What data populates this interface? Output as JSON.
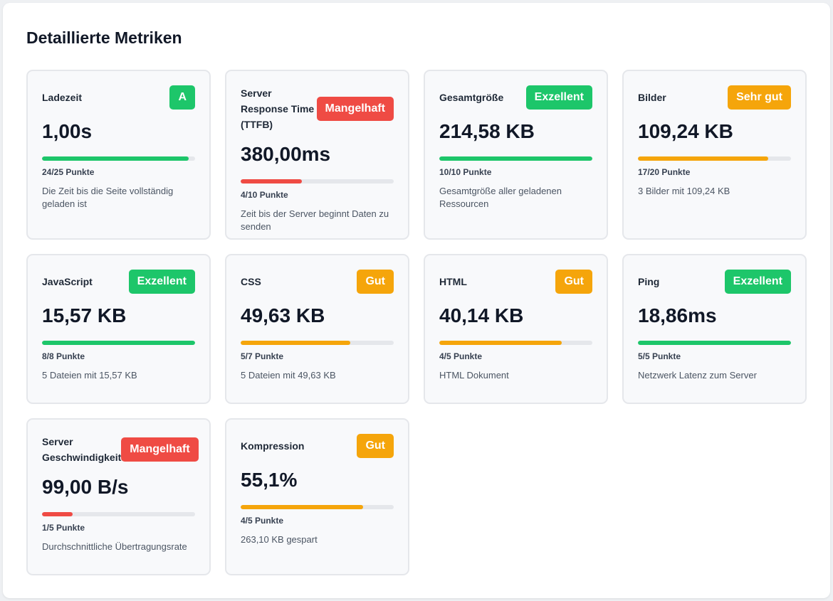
{
  "section": {
    "title": "Detaillierte Metriken"
  },
  "colors": {
    "green": "#1dc66a",
    "red": "#ef4b44",
    "orange": "#f5a50b",
    "track": "#e5e7eb"
  },
  "metrics": [
    {
      "title": "Ladezeit",
      "badge": "A",
      "status": "green",
      "value": "1,00s",
      "progress": 0.96,
      "points": "24/25 Punkte",
      "description": "Die Zeit bis die Seite vollständig geladen ist"
    },
    {
      "title": "Server Response Time (TTFB)",
      "badge": "Mangelhaft",
      "status": "red",
      "value": "380,00ms",
      "progress": 0.4,
      "points": "4/10 Punkte",
      "description": "Zeit bis der Server beginnt Daten zu senden"
    },
    {
      "title": "Gesamtgröße",
      "badge": "Exzellent",
      "status": "green",
      "value": "214,58 KB",
      "progress": 1.0,
      "points": "10/10 Punkte",
      "description": "Gesamtgröße aller geladenen Ressourcen"
    },
    {
      "title": "Bilder",
      "badge": "Sehr gut",
      "status": "orange",
      "value": "109,24 KB",
      "progress": 0.85,
      "points": "17/20 Punkte",
      "description": "3 Bilder mit 109,24 KB"
    },
    {
      "title": "JavaScript",
      "badge": "Exzellent",
      "status": "green",
      "value": "15,57 KB",
      "progress": 1.0,
      "points": "8/8 Punkte",
      "description": "5 Dateien mit 15,57 KB"
    },
    {
      "title": "CSS",
      "badge": "Gut",
      "status": "orange",
      "value": "49,63 KB",
      "progress": 0.714,
      "points": "5/7 Punkte",
      "description": "5 Dateien mit 49,63 KB"
    },
    {
      "title": "HTML",
      "badge": "Gut",
      "status": "orange",
      "value": "40,14 KB",
      "progress": 0.8,
      "points": "4/5 Punkte",
      "description": "HTML Dokument"
    },
    {
      "title": "Ping",
      "badge": "Exzellent",
      "status": "green",
      "value": "18,86ms",
      "progress": 1.0,
      "points": "5/5 Punkte",
      "description": "Netzwerk Latenz zum Server"
    },
    {
      "title": "Server Geschwindigkeit",
      "badge": "Mangelhaft",
      "status": "red",
      "value": "99,00 B/s",
      "progress": 0.2,
      "points": "1/5 Punkte",
      "description": "Durchschnittliche Übertragungsrate"
    },
    {
      "title": "Kompression",
      "badge": "Gut",
      "status": "orange",
      "value": "55,1%",
      "progress": 0.8,
      "points": "4/5 Punkte",
      "description": "263,10 KB gespart"
    }
  ]
}
